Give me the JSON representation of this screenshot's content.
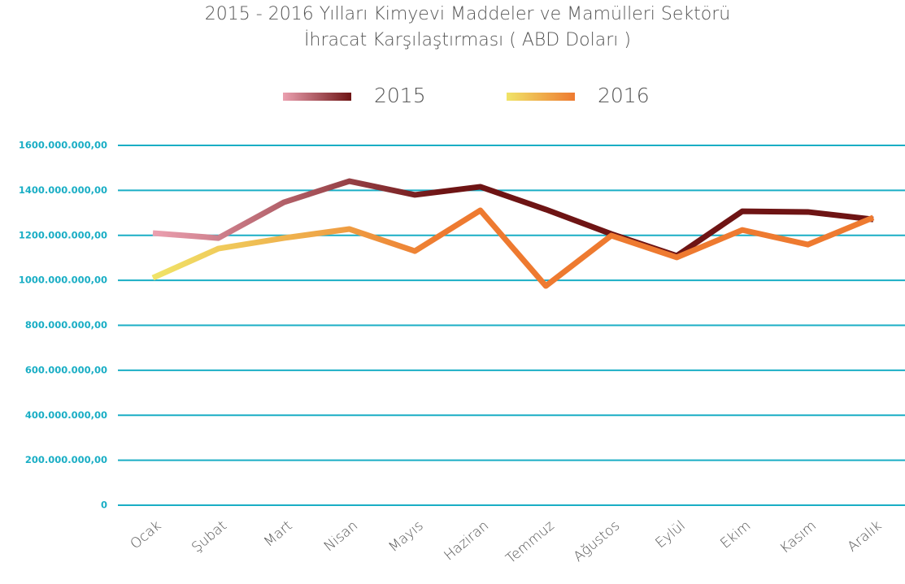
{
  "chart_data": {
    "type": "line",
    "title": "2015 - 2016 Yılları Kimyevi Maddeler ve Mamülleri Sektörü",
    "subtitle": "İhracat Karşılaştırması ( ABD Doları )",
    "categories": [
      "Ocak",
      "Şubat",
      "Mart",
      "Nisan",
      "Mayıs",
      "Haziran",
      "Temmuz",
      "Ağustos",
      "Eylül",
      "Ekim",
      "Kasım",
      "Aralık"
    ],
    "series": [
      {
        "name": "2015",
        "color": "#6e1414",
        "color_start": "#eba0b0",
        "values": [
          1210000000,
          1188000000,
          1347000000,
          1441000000,
          1380000000,
          1416000000,
          1315000000,
          1206000000,
          1109000000,
          1307000000,
          1304000000,
          1271000000
        ]
      },
      {
        "name": "2016",
        "color": "#ee7a30",
        "color_start": "#f0e468",
        "values": [
          1011000000,
          1141000000,
          1188000000,
          1228000000,
          1130000000,
          1311000000,
          975000000,
          1199000000,
          1102000000,
          1224000000,
          1159000000,
          1279000000
        ]
      }
    ],
    "ylim": [
      0,
      1600000000
    ],
    "yticks": [
      0,
      {
        "value": 200000000,
        "label": "200.000.000,00"
      },
      {
        "value": 400000000,
        "label": "400.000.000,00"
      },
      {
        "value": 600000000,
        "label": "600.000.000,00"
      },
      {
        "value": 800000000,
        "label": "800.000.000,00"
      },
      {
        "value": 1000000000,
        "label": "1000.000.000,00"
      },
      {
        "value": 1200000000,
        "label": "1200.000.000,00"
      },
      {
        "value": 1400000000,
        "label": "1400.000.000,00"
      },
      {
        "value": 1600000000,
        "label": "1600.000.000,00"
      }
    ],
    "grid": true,
    "grid_color": "#1aaec5",
    "legend": "top"
  }
}
